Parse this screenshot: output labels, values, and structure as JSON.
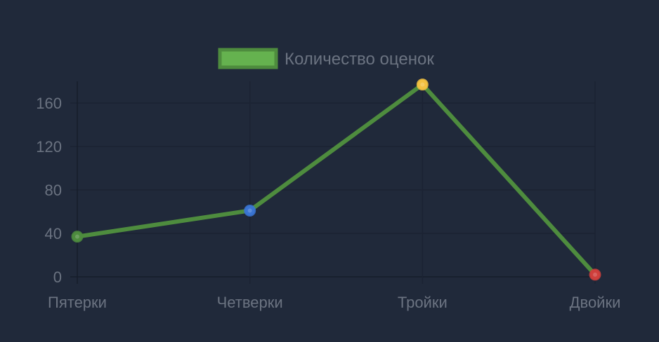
{
  "chart_data": {
    "type": "line",
    "categories": [
      "Пятерки",
      "Четверки",
      "Тройки",
      "Двойки"
    ],
    "series": [
      {
        "name": "Количество оценок",
        "values": [
          37,
          61,
          177,
          2
        ],
        "color": "#4e8c3e",
        "legend_fill": "#65b24f",
        "point_colors": [
          "#4e8c3e",
          "#3a74d2",
          "#f2c141",
          "#cf3f3c"
        ]
      }
    ],
    "yticks": [
      0,
      40,
      80,
      120,
      160
    ],
    "ylim": [
      -10,
      180
    ],
    "grid": true,
    "legend_position": "top-center"
  }
}
